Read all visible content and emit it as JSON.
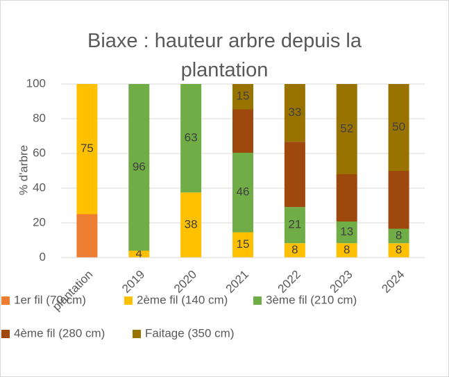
{
  "chart_data": {
    "type": "stacked_bar",
    "title": "Biaxe : hauteur arbre depuis la plantation",
    "y_label": "% d'arbre",
    "categories": [
      "plantation",
      "2019",
      "2020",
      "2021",
      "2022",
      "2023",
      "2024"
    ],
    "series": [
      {
        "name": "1er fil (70 cm)",
        "color": "#ED7D31",
        "values": [
          25,
          null,
          null,
          null,
          null,
          null,
          null
        ],
        "value_labels": [
          null,
          null,
          null,
          null,
          null,
          null,
          null
        ]
      },
      {
        "name": "2ème fil (140 cm)",
        "color": "#FFC000",
        "values": [
          75,
          4,
          37.5,
          14.6,
          8.3,
          8.3,
          8.3
        ],
        "value_labels": [
          "75",
          "4",
          "38",
          "15",
          "8",
          "8",
          "8"
        ]
      },
      {
        "name": "3ème fil (210 cm)",
        "color": "#70AD47",
        "values": [
          null,
          96,
          62.5,
          45.8,
          20.8,
          12.5,
          8.3
        ],
        "value_labels": [
          null,
          "96",
          "63",
          "46",
          "21",
          "13",
          "8"
        ]
      },
      {
        "name": "4ème fil (280 cm)",
        "color": "#9E480E",
        "values": [
          null,
          null,
          null,
          25,
          37.6,
          27.2,
          33.4
        ],
        "value_labels": [
          null,
          null,
          null,
          null,
          null,
          null,
          null
        ]
      },
      {
        "name": "Faitage (350 cm)",
        "color": "#997300",
        "values": [
          null,
          null,
          null,
          14.6,
          33.3,
          52,
          50
        ],
        "value_labels": [
          null,
          null,
          null,
          "15",
          "33",
          "52",
          "50"
        ]
      }
    ],
    "ylim": [
      0,
      100
    ],
    "yticks": [
      0,
      20,
      40,
      60,
      80,
      100
    ],
    "grid": true,
    "legend": "bottom"
  }
}
